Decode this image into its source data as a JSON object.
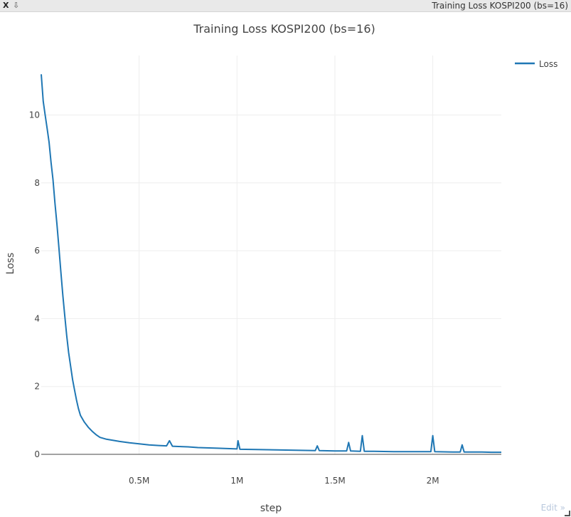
{
  "window": {
    "close_label": "X",
    "popout_glyph": "⇩",
    "title": "Training Loss KOSPI200 (bs=16)",
    "edit_label": "Edit",
    "edit_arrow": "»"
  },
  "colors": {
    "series": "#1f77b4",
    "grid": "#eeeeee",
    "zeroline": "#444444",
    "text": "#444444"
  },
  "chart_data": {
    "type": "line",
    "title": "Training Loss KOSPI200 (bs=16)",
    "xlabel": "step",
    "ylabel": "Loss",
    "xlim": [
      0,
      2350000
    ],
    "ylim": [
      0,
      11.5
    ],
    "x_ticks": [
      500000,
      1000000,
      1500000,
      2000000
    ],
    "x_tick_labels": [
      "0.5M",
      "1M",
      "1.5M",
      "2M"
    ],
    "y_ticks": [
      0,
      2,
      4,
      6,
      8,
      10
    ],
    "y_tick_labels": [
      "0",
      "2",
      "4",
      "6",
      "8",
      "10"
    ],
    "grid": true,
    "legend_position": "top-right",
    "series": [
      {
        "name": "Loss",
        "x": [
          0,
          10000,
          20000,
          30000,
          40000,
          50000,
          60000,
          70000,
          80000,
          90000,
          100000,
          110000,
          120000,
          130000,
          140000,
          150000,
          160000,
          170000,
          180000,
          190000,
          200000,
          220000,
          240000,
          260000,
          280000,
          300000,
          330000,
          360000,
          400000,
          450000,
          500000,
          550000,
          600000,
          640000,
          655000,
          670000,
          700000,
          750000,
          800000,
          900000,
          1000000,
          1005000,
          1015000,
          1100000,
          1200000,
          1300000,
          1400000,
          1410000,
          1420000,
          1500000,
          1560000,
          1570000,
          1580000,
          1630000,
          1640000,
          1650000,
          1700000,
          1800000,
          1900000,
          1990000,
          2000000,
          2010000,
          2100000,
          2140000,
          2150000,
          2160000,
          2200000,
          2250000,
          2300000,
          2350000
        ],
        "y": [
          11.2,
          10.4,
          10.0,
          9.6,
          9.2,
          8.6,
          8.1,
          7.4,
          6.8,
          6.1,
          5.4,
          4.7,
          4.1,
          3.5,
          3.0,
          2.6,
          2.2,
          1.9,
          1.6,
          1.35,
          1.15,
          0.95,
          0.8,
          0.68,
          0.58,
          0.5,
          0.45,
          0.42,
          0.38,
          0.34,
          0.31,
          0.28,
          0.26,
          0.25,
          0.4,
          0.24,
          0.23,
          0.22,
          0.2,
          0.18,
          0.16,
          0.4,
          0.15,
          0.14,
          0.13,
          0.12,
          0.11,
          0.25,
          0.11,
          0.1,
          0.1,
          0.35,
          0.1,
          0.09,
          0.55,
          0.09,
          0.09,
          0.08,
          0.08,
          0.08,
          0.55,
          0.08,
          0.07,
          0.07,
          0.28,
          0.07,
          0.07,
          0.07,
          0.06,
          0.06
        ]
      }
    ]
  }
}
